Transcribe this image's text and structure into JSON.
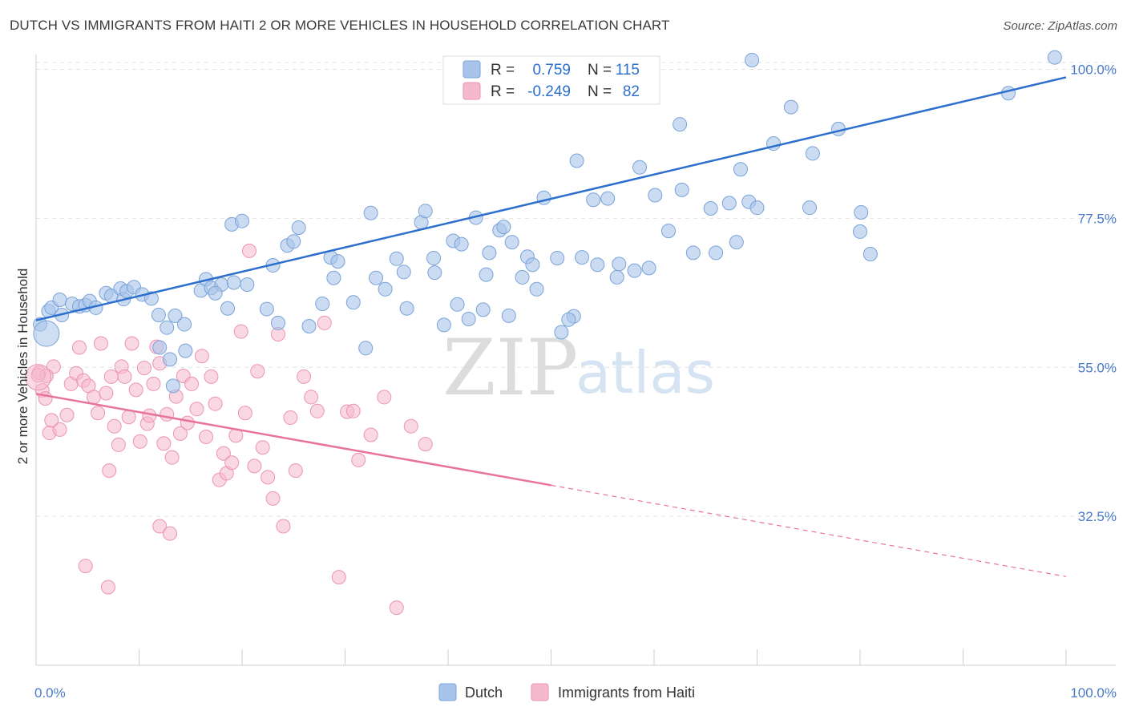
{
  "title": "DUTCH VS IMMIGRANTS FROM HAITI 2 OR MORE VEHICLES IN HOUSEHOLD CORRELATION CHART",
  "source": "Source: ZipAtlas.com",
  "watermark": {
    "zip": "ZIP",
    "atlas": "atlas"
  },
  "legend_box": [
    {
      "r_label": "R =",
      "r_value": "0.759",
      "n_label": "N =",
      "n_value": "115"
    },
    {
      "r_label": "R =",
      "r_value": "-0.249",
      "n_label": "N =",
      "n_value": "82"
    }
  ],
  "colors": {
    "dutch_fill": "#a8c4ea",
    "dutch_stroke": "#7aa3d8",
    "dutch_line": "#2d6fcc",
    "haiti_fill": "#f5b8cc",
    "haiti_stroke": "#eb94b2",
    "haiti_line": "#e8739c",
    "tick_text": "#4a7bc8"
  },
  "chart_data": {
    "type": "scatter",
    "title": "DUTCH VS IMMIGRANTS FROM HAITI 2 OR MORE VEHICLES IN HOUSEHOLD CORRELATION CHART",
    "xlabel": "",
    "ylabel": "2 or more Vehicles in Household",
    "xlim": [
      0,
      100
    ],
    "ylim": [
      10,
      102
    ],
    "x_tick_labels": [
      "0.0%",
      "100.0%"
    ],
    "y_ticks": [
      32.5,
      55.0,
      77.5,
      100.0
    ],
    "y_tick_labels": [
      "32.5%",
      "55.0%",
      "77.5%",
      "100.0%"
    ],
    "grid": true,
    "legend_position": "bottom",
    "series": [
      {
        "name": "Dutch",
        "r": 0.759,
        "n": 115,
        "trend": {
          "x": [
            0,
            100
          ],
          "y": [
            62.1,
            98.8
          ]
        },
        "points": [
          [
            0.4,
            61.5
          ],
          [
            1.2,
            63.5
          ],
          [
            1.5,
            64.0
          ],
          [
            2.3,
            65.2
          ],
          [
            2.5,
            62.9
          ],
          [
            3.5,
            64.6
          ],
          [
            4.2,
            64.2
          ],
          [
            4.8,
            64.4
          ],
          [
            5.2,
            65.0
          ],
          [
            5.8,
            64.0
          ],
          [
            6.8,
            66.2
          ],
          [
            7.3,
            65.8
          ],
          [
            8.2,
            66.9
          ],
          [
            8.5,
            65.3
          ],
          [
            8.8,
            66.5
          ],
          [
            9.5,
            67.1
          ],
          [
            10.3,
            66.0
          ],
          [
            11.2,
            65.4
          ],
          [
            11.9,
            62.9
          ],
          [
            12.7,
            61.0
          ],
          [
            13.5,
            62.8
          ],
          [
            14.4,
            61.5
          ],
          [
            12.0,
            58.0
          ],
          [
            13.0,
            56.2
          ],
          [
            13.3,
            52.2
          ],
          [
            14.5,
            57.5
          ],
          [
            16.0,
            66.6
          ],
          [
            16.5,
            68.3
          ],
          [
            17.0,
            67.0
          ],
          [
            18.0,
            67.5
          ],
          [
            18.6,
            63.9
          ],
          [
            19.2,
            67.8
          ],
          [
            20.5,
            67.5
          ],
          [
            17.4,
            66.2
          ],
          [
            19.0,
            76.6
          ],
          [
            20.0,
            77.1
          ],
          [
            22.4,
            63.8
          ],
          [
            23.0,
            70.4
          ],
          [
            23.5,
            61.7
          ],
          [
            24.4,
            73.4
          ],
          [
            25.5,
            76.1
          ],
          [
            25.0,
            74.0
          ],
          [
            26.5,
            61.2
          ],
          [
            27.8,
            64.6
          ],
          [
            28.6,
            71.6
          ],
          [
            28.9,
            68.5
          ],
          [
            29.3,
            71.0
          ],
          [
            30.8,
            64.8
          ],
          [
            32.0,
            57.9
          ],
          [
            32.5,
            78.3
          ],
          [
            33.0,
            68.5
          ],
          [
            35.0,
            71.4
          ],
          [
            33.9,
            66.8
          ],
          [
            35.7,
            69.4
          ],
          [
            36.0,
            63.9
          ],
          [
            37.4,
            76.9
          ],
          [
            37.8,
            78.6
          ],
          [
            38.6,
            71.5
          ],
          [
            38.7,
            69.3
          ],
          [
            39.6,
            61.4
          ],
          [
            40.5,
            74.1
          ],
          [
            40.9,
            64.5
          ],
          [
            41.3,
            73.6
          ],
          [
            42.0,
            62.3
          ],
          [
            42.7,
            77.6
          ],
          [
            43.4,
            63.7
          ],
          [
            43.7,
            69.0
          ],
          [
            44.0,
            72.3
          ],
          [
            45.0,
            75.7
          ],
          [
            45.4,
            76.2
          ],
          [
            45.9,
            62.8
          ],
          [
            46.2,
            73.9
          ],
          [
            47.2,
            68.6
          ],
          [
            47.7,
            71.7
          ],
          [
            48.2,
            70.5
          ],
          [
            48.6,
            66.8
          ],
          [
            49.3,
            80.6
          ],
          [
            50.6,
            71.5
          ],
          [
            51.0,
            60.3
          ],
          [
            52.2,
            62.7
          ],
          [
            51.7,
            62.2
          ],
          [
            52.5,
            86.2
          ],
          [
            53.0,
            71.6
          ],
          [
            54.1,
            80.3
          ],
          [
            54.5,
            70.5
          ],
          [
            55.5,
            80.5
          ],
          [
            56.4,
            68.6
          ],
          [
            56.6,
            70.6
          ],
          [
            58.1,
            69.6
          ],
          [
            58.6,
            85.2
          ],
          [
            59.5,
            70.0
          ],
          [
            60.1,
            81.0
          ],
          [
            61.4,
            75.6
          ],
          [
            62.5,
            91.7
          ],
          [
            62.7,
            81.8
          ],
          [
            63.8,
            72.3
          ],
          [
            65.5,
            79.0
          ],
          [
            66.0,
            72.3
          ],
          [
            67.3,
            79.8
          ],
          [
            68.0,
            73.9
          ],
          [
            68.4,
            84.9
          ],
          [
            69.2,
            80.0
          ],
          [
            70.0,
            79.1
          ],
          [
            71.6,
            88.8
          ],
          [
            73.3,
            94.3
          ],
          [
            75.1,
            79.1
          ],
          [
            75.4,
            87.3
          ],
          [
            77.9,
            91.0
          ],
          [
            80.0,
            75.5
          ],
          [
            80.1,
            78.4
          ],
          [
            81.0,
            72.1
          ],
          [
            94.4,
            96.4
          ],
          [
            98.9,
            101.8
          ],
          [
            56.4,
            96.2
          ],
          [
            69.5,
            101.4
          ]
        ]
      },
      {
        "name": "Immigrants from Haiti",
        "r": -0.249,
        "n": 82,
        "trend": {
          "x": [
            0,
            50
          ],
          "y": [
            51.0,
            37.2
          ]
        },
        "trend_dashed": {
          "x": [
            50,
            100
          ],
          "y": [
            37.2,
            23.4
          ]
        },
        "points": [
          [
            0.3,
            54.2
          ],
          [
            0.6,
            51.5
          ],
          [
            0.9,
            50.3
          ],
          [
            1.3,
            45.1
          ],
          [
            1.7,
            55.1
          ],
          [
            2.3,
            45.6
          ],
          [
            3.0,
            47.8
          ],
          [
            3.4,
            52.5
          ],
          [
            3.9,
            54.1
          ],
          [
            4.2,
            58.0
          ],
          [
            4.6,
            53.0
          ],
          [
            5.1,
            52.2
          ],
          [
            5.6,
            50.5
          ],
          [
            6.0,
            48.1
          ],
          [
            6.3,
            58.6
          ],
          [
            6.8,
            51.1
          ],
          [
            7.1,
            39.4
          ],
          [
            7.3,
            53.6
          ],
          [
            7.6,
            46.1
          ],
          [
            8.0,
            43.3
          ],
          [
            8.3,
            55.1
          ],
          [
            8.6,
            53.6
          ],
          [
            9.0,
            47.5
          ],
          [
            9.3,
            58.6
          ],
          [
            9.7,
            51.6
          ],
          [
            10.1,
            43.8
          ],
          [
            10.5,
            54.9
          ],
          [
            10.8,
            46.5
          ],
          [
            11.0,
            47.7
          ],
          [
            11.4,
            52.5
          ],
          [
            11.7,
            58.1
          ],
          [
            12.0,
            55.6
          ],
          [
            12.4,
            43.5
          ],
          [
            12.7,
            47.9
          ],
          [
            13.2,
            41.4
          ],
          [
            13.6,
            50.6
          ],
          [
            14.0,
            45.0
          ],
          [
            14.3,
            53.7
          ],
          [
            14.7,
            46.6
          ],
          [
            15.1,
            52.5
          ],
          [
            15.6,
            48.7
          ],
          [
            16.1,
            56.7
          ],
          [
            16.5,
            44.5
          ],
          [
            17.0,
            53.6
          ],
          [
            17.4,
            49.5
          ],
          [
            17.8,
            38.0
          ],
          [
            18.2,
            42.0
          ],
          [
            18.5,
            39.0
          ],
          [
            19.0,
            40.6
          ],
          [
            19.4,
            44.7
          ],
          [
            19.9,
            60.4
          ],
          [
            20.3,
            48.1
          ],
          [
            20.7,
            72.6
          ],
          [
            21.2,
            40.1
          ],
          [
            21.5,
            54.4
          ],
          [
            22.0,
            42.9
          ],
          [
            22.5,
            38.4
          ],
          [
            23.0,
            35.2
          ],
          [
            23.5,
            60.0
          ],
          [
            24.0,
            31.0
          ],
          [
            24.7,
            47.4
          ],
          [
            25.2,
            39.4
          ],
          [
            26.0,
            53.6
          ],
          [
            26.7,
            50.5
          ],
          [
            27.3,
            48.4
          ],
          [
            28.0,
            61.7
          ],
          [
            29.4,
            23.3
          ],
          [
            30.2,
            48.3
          ],
          [
            30.8,
            48.4
          ],
          [
            31.3,
            41.0
          ],
          [
            32.5,
            44.8
          ],
          [
            33.8,
            50.5
          ],
          [
            35.0,
            18.7
          ],
          [
            36.4,
            46.1
          ],
          [
            37.8,
            43.4
          ],
          [
            4.8,
            25.0
          ],
          [
            7.0,
            21.8
          ],
          [
            12.0,
            31.0
          ],
          [
            13.0,
            29.9
          ],
          [
            1.0,
            53.7
          ],
          [
            0.2,
            53.8
          ],
          [
            1.5,
            47.0
          ]
        ]
      }
    ]
  }
}
